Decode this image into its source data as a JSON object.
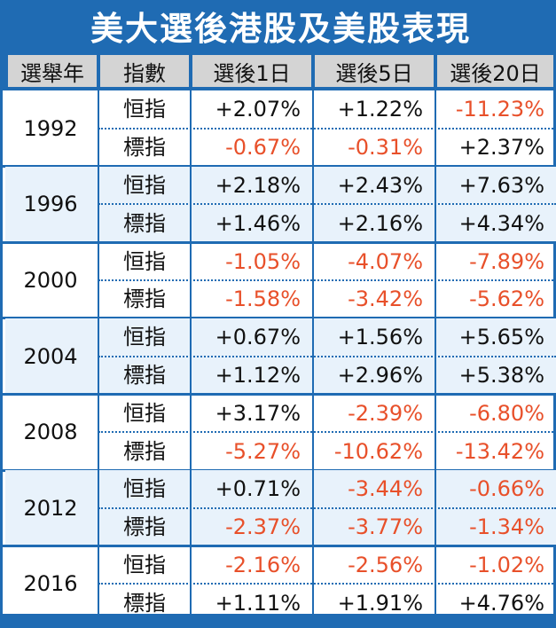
{
  "title": "美大選後港股及美股表現",
  "colors": {
    "accent": "#1f6bb3",
    "header_cell": "#d4d4d4",
    "band": "#e8f2fb",
    "positive": "#111111",
    "negative": "#e8502a"
  },
  "chart_data": {
    "type": "table",
    "title": "美大選後港股及美股表現",
    "columns": [
      "選舉年",
      "指數",
      "選後1日",
      "選後5日",
      "選後20日"
    ],
    "rows": [
      {
        "year": "1992",
        "entries": [
          {
            "index": "恒指",
            "values": [
              "+2.07%",
              "+1.22%",
              "-11.23%"
            ]
          },
          {
            "index": "標指",
            "values": [
              "-0.67%",
              "-0.31%",
              "+2.37%"
            ]
          }
        ]
      },
      {
        "year": "1996",
        "entries": [
          {
            "index": "恒指",
            "values": [
              "+2.18%",
              "+2.43%",
              "+7.63%"
            ]
          },
          {
            "index": "標指",
            "values": [
              "+1.46%",
              "+2.16%",
              "+4.34%"
            ]
          }
        ]
      },
      {
        "year": "2000",
        "entries": [
          {
            "index": "恒指",
            "values": [
              "-1.05%",
              "-4.07%",
              "-7.89%"
            ]
          },
          {
            "index": "標指",
            "values": [
              "-1.58%",
              "-3.42%",
              "-5.62%"
            ]
          }
        ]
      },
      {
        "year": "2004",
        "entries": [
          {
            "index": "恒指",
            "values": [
              "+0.67%",
              "+1.56%",
              "+5.65%"
            ]
          },
          {
            "index": "標指",
            "values": [
              "+1.12%",
              "+2.96%",
              "+5.38%"
            ]
          }
        ]
      },
      {
        "year": "2008",
        "entries": [
          {
            "index": "恒指",
            "values": [
              "+3.17%",
              "-2.39%",
              "-6.80%"
            ]
          },
          {
            "index": "標指",
            "values": [
              "-5.27%",
              "-10.62%",
              "-13.42%"
            ]
          }
        ]
      },
      {
        "year": "2012",
        "entries": [
          {
            "index": "恒指",
            "values": [
              "+0.71%",
              "-3.44%",
              "-0.66%"
            ]
          },
          {
            "index": "標指",
            "values": [
              "-2.37%",
              "-3.77%",
              "-1.34%"
            ]
          }
        ]
      },
      {
        "year": "2016",
        "entries": [
          {
            "index": "恒指",
            "values": [
              "-2.16%",
              "-2.56%",
              "-1.02%"
            ]
          },
          {
            "index": "標指",
            "values": [
              "+1.11%",
              "+1.91%",
              "+4.76%"
            ]
          }
        ]
      }
    ]
  }
}
